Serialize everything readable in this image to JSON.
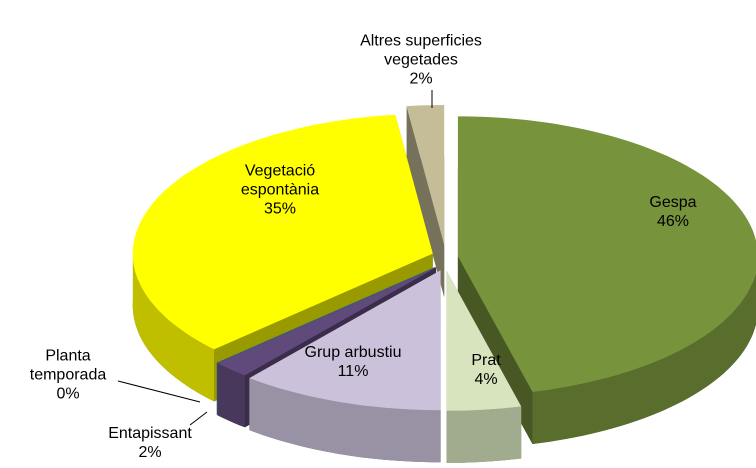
{
  "chart_data": {
    "type": "pie3d",
    "categories": [
      "Gespa",
      "Prat",
      "Grup arbustiu",
      "Entapissant",
      "Planta temporada",
      "Vegetació espontània",
      "Altres superficies vegetades"
    ],
    "values": [
      46,
      4,
      11,
      2,
      0,
      35,
      2
    ],
    "value_labels": [
      "46%",
      "4%",
      "11%",
      "2%",
      "0%",
      "35%",
      "2%"
    ],
    "colors": [
      "#77933c",
      "#d7e4bd",
      "#ccc1da",
      "#604a7b",
      "#4bacc6",
      "#ffff00",
      "#c4bd97"
    ]
  }
}
